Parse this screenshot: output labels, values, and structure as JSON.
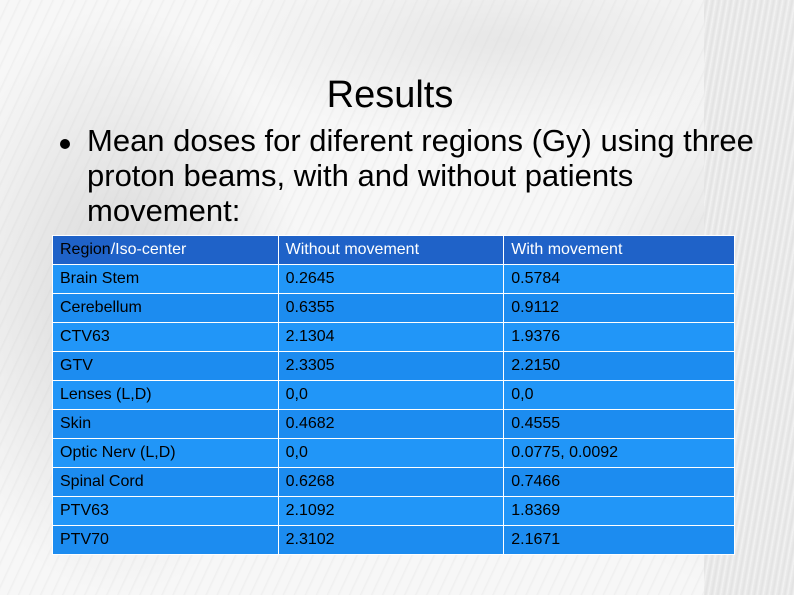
{
  "slide": {
    "title": "Results",
    "bullet_text": "Mean doses for diferent regions (Gy) using three proton beams, with and without patients movement:"
  },
  "table": {
    "headers": {
      "region_part1": "Region",
      "region_part2": "/Iso-center",
      "without": "Without movement",
      "with": "With movement"
    },
    "rows": [
      {
        "region": "Brain Stem",
        "without": "0.2645",
        "with": "0.5784"
      },
      {
        "region": "Cerebellum",
        "without": "0.6355",
        "with": "0.9112"
      },
      {
        "region": "CTV63",
        "without": "2.1304",
        "with": "1.9376"
      },
      {
        "region": "GTV",
        "without": "2.3305",
        "with": "2.2150"
      },
      {
        "region": "Lenses (L,D)",
        "without": "0,0",
        "with": "0,0"
      },
      {
        "region": "Skin",
        "without": "0.4682",
        "with": "0.4555"
      },
      {
        "region": "Optic Nerv (L,D)",
        "without": "0,0",
        "with": "0.0775, 0.0092"
      },
      {
        "region": "Spinal Cord",
        "without": "0.6268",
        "with": "0.7466"
      },
      {
        "region": "PTV63",
        "without": "2.1092",
        "with": "1.8369"
      },
      {
        "region": "PTV70",
        "without": "2.3102",
        "with": "2.1671"
      }
    ]
  }
}
